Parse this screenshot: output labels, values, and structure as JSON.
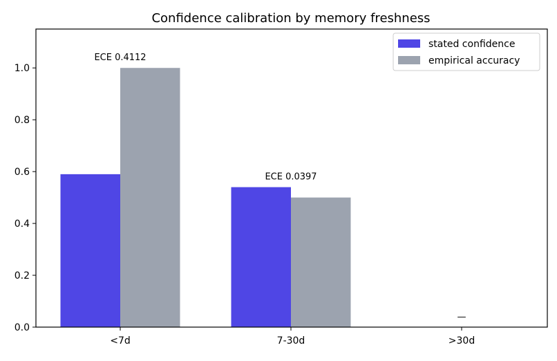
{
  "chart_data": {
    "type": "bar",
    "title": "Confidence calibration by memory freshness",
    "xlabel": "",
    "ylabel": "",
    "categories": [
      "<7d",
      "7-30d",
      ">30d"
    ],
    "series": [
      {
        "name": "stated confidence",
        "color": "#4f46e5",
        "values": [
          0.59,
          0.54,
          null
        ]
      },
      {
        "name": "empirical accuracy",
        "color": "#9ca3af",
        "values": [
          1.0,
          0.5,
          null
        ]
      }
    ],
    "annotations": [
      "ECE 0.4112",
      "ECE 0.0397",
      "—"
    ],
    "ylim": [
      0,
      1.15
    ],
    "yticks": [
      "0.0",
      "0.2",
      "0.4",
      "0.6",
      "0.8",
      "1.0"
    ],
    "grid": false,
    "legend_position": "top-right"
  }
}
